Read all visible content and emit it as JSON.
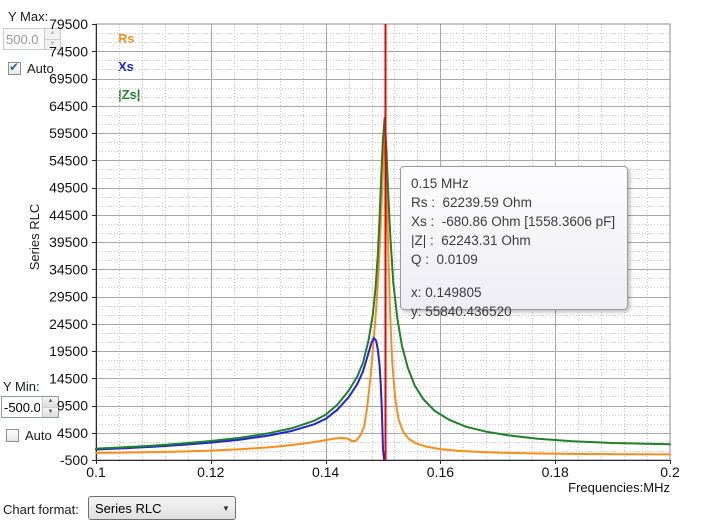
{
  "controls": {
    "y_max_label": "Y Max:",
    "y_max_value": "500.0",
    "auto_top_label": "Auto",
    "auto_top_checked": true,
    "y_axis_title": "Series RLC",
    "y_min_label": "Y Min:",
    "y_min_value": "-500.0",
    "auto_bottom_label": "Auto",
    "auto_bottom_checked": false,
    "chart_format_label": "Chart format:",
    "chart_format_value": "Series RLC",
    "combo_arrow": "▼"
  },
  "tooltip": {
    "title": "0.15 MHz",
    "rs_line": "Rs :  62239.59 Ohm",
    "xs_line": "Xs :  -680.86 Ohm [1558.3606 pF]",
    "z_line": "|Z| :  62243.31 Ohm",
    "q_line": "Q :  0.0109",
    "x_line": "x: 0.149805",
    "y_line": "y: 55840.436520"
  },
  "chart_data": {
    "type": "line",
    "title": "",
    "xlabel": "Frequencies:MHz",
    "ylabel": "Series RLC",
    "xlim": [
      0.1,
      0.2
    ],
    "ylim": [
      -500,
      79500
    ],
    "x_ticks": [
      0.1,
      0.12,
      0.14,
      0.16,
      0.18,
      0.2
    ],
    "x_tick_labels": [
      "0.1",
      "0.12",
      "0.14",
      "0.16",
      "0.18",
      "0.2"
    ],
    "y_ticks": [
      79500,
      74500,
      69500,
      64500,
      59500,
      54500,
      49500,
      44500,
      39500,
      34500,
      29500,
      24500,
      19500,
      14500,
      9500,
      4500,
      -500
    ],
    "minor_x_step": 0.004,
    "minor_y_step": 1666.667,
    "grid": true,
    "legend_position": "top-left",
    "cursor_x": 0.1503,
    "cursor_color": "#ee0000",
    "legend": [
      {
        "key": "rs",
        "label": "Rs",
        "color": "#ff8c1a"
      },
      {
        "key": "xs",
        "label": "Xs",
        "color": "#2222dd"
      },
      {
        "key": "zs",
        "label": "|Zs|",
        "color": "#1d8128"
      }
    ],
    "series": [
      {
        "key": "rs",
        "name": "Rs",
        "color": "#ff8c1a",
        "points": [
          [
            0.1,
            800
          ],
          [
            0.105,
            860
          ],
          [
            0.11,
            950
          ],
          [
            0.115,
            1060
          ],
          [
            0.12,
            1220
          ],
          [
            0.125,
            1460
          ],
          [
            0.13,
            1820
          ],
          [
            0.134,
            2230
          ],
          [
            0.138,
            2780
          ],
          [
            0.14,
            3150
          ],
          [
            0.1415,
            3420
          ],
          [
            0.1428,
            3560
          ],
          [
            0.1438,
            3430
          ],
          [
            0.1447,
            2950
          ],
          [
            0.1453,
            3050
          ],
          [
            0.146,
            3900
          ],
          [
            0.1467,
            5600
          ],
          [
            0.1472,
            8800
          ],
          [
            0.1478,
            14500
          ],
          [
            0.1483,
            20500
          ],
          [
            0.1488,
            27000
          ],
          [
            0.1492,
            33500
          ],
          [
            0.1496,
            42500
          ],
          [
            0.15,
            53000
          ],
          [
            0.1503,
            62200
          ],
          [
            0.1506,
            51000
          ],
          [
            0.1509,
            38500
          ],
          [
            0.1512,
            27500
          ],
          [
            0.1516,
            17500
          ],
          [
            0.1521,
            11000
          ],
          [
            0.1527,
            7000
          ],
          [
            0.1535,
            4700
          ],
          [
            0.1545,
            3350
          ],
          [
            0.1558,
            2550
          ],
          [
            0.1575,
            1950
          ],
          [
            0.16,
            1500
          ],
          [
            0.163,
            1180
          ],
          [
            0.1665,
            980
          ],
          [
            0.171,
            820
          ],
          [
            0.177,
            700
          ],
          [
            0.185,
            610
          ],
          [
            0.2,
            530
          ]
        ]
      },
      {
        "key": "xs",
        "name": "Xs",
        "color": "#2222dd",
        "points": [
          [
            0.1,
            1430
          ],
          [
            0.105,
            1650
          ],
          [
            0.11,
            1930
          ],
          [
            0.115,
            2270
          ],
          [
            0.12,
            2690
          ],
          [
            0.125,
            3220
          ],
          [
            0.13,
            3980
          ],
          [
            0.134,
            4800
          ],
          [
            0.138,
            6050
          ],
          [
            0.14,
            7050
          ],
          [
            0.142,
            8700
          ],
          [
            0.144,
            11000
          ],
          [
            0.1455,
            13400
          ],
          [
            0.1465,
            15700
          ],
          [
            0.1475,
            19200
          ],
          [
            0.148,
            21000
          ],
          [
            0.1484,
            21900
          ],
          [
            0.1488,
            21400
          ],
          [
            0.1491,
            19800
          ],
          [
            0.1494,
            16800
          ],
          [
            0.1496,
            13500
          ],
          [
            0.1498,
            8500
          ],
          [
            0.15,
            1500
          ],
          [
            0.1502,
            -700
          ]
        ]
      },
      {
        "key": "zs",
        "name": "|Zs|",
        "color": "#1d8128",
        "points": [
          [
            0.1,
            1600
          ],
          [
            0.105,
            1850
          ],
          [
            0.11,
            2150
          ],
          [
            0.115,
            2520
          ],
          [
            0.12,
            2980
          ],
          [
            0.125,
            3560
          ],
          [
            0.13,
            4400
          ],
          [
            0.134,
            5300
          ],
          [
            0.138,
            6700
          ],
          [
            0.14,
            7800
          ],
          [
            0.142,
            9600
          ],
          [
            0.144,
            12200
          ],
          [
            0.1455,
            14800
          ],
          [
            0.1465,
            17300
          ],
          [
            0.1475,
            21500
          ],
          [
            0.1482,
            26000
          ],
          [
            0.1487,
            31000
          ],
          [
            0.1491,
            37000
          ],
          [
            0.1494,
            44000
          ],
          [
            0.1497,
            52000
          ],
          [
            0.15,
            58500
          ],
          [
            0.1503,
            62300
          ],
          [
            0.1506,
            56500
          ],
          [
            0.1509,
            48500
          ],
          [
            0.1513,
            40000
          ],
          [
            0.1518,
            32000
          ],
          [
            0.1525,
            25500
          ],
          [
            0.1533,
            20500
          ],
          [
            0.1543,
            16500
          ],
          [
            0.1555,
            13200
          ],
          [
            0.157,
            10700
          ],
          [
            0.159,
            8500
          ],
          [
            0.1615,
            6900
          ],
          [
            0.1645,
            5600
          ],
          [
            0.168,
            4700
          ],
          [
            0.172,
            4000
          ],
          [
            0.177,
            3400
          ],
          [
            0.183,
            2950
          ],
          [
            0.19,
            2620
          ],
          [
            0.2,
            2380
          ]
        ]
      }
    ]
  }
}
